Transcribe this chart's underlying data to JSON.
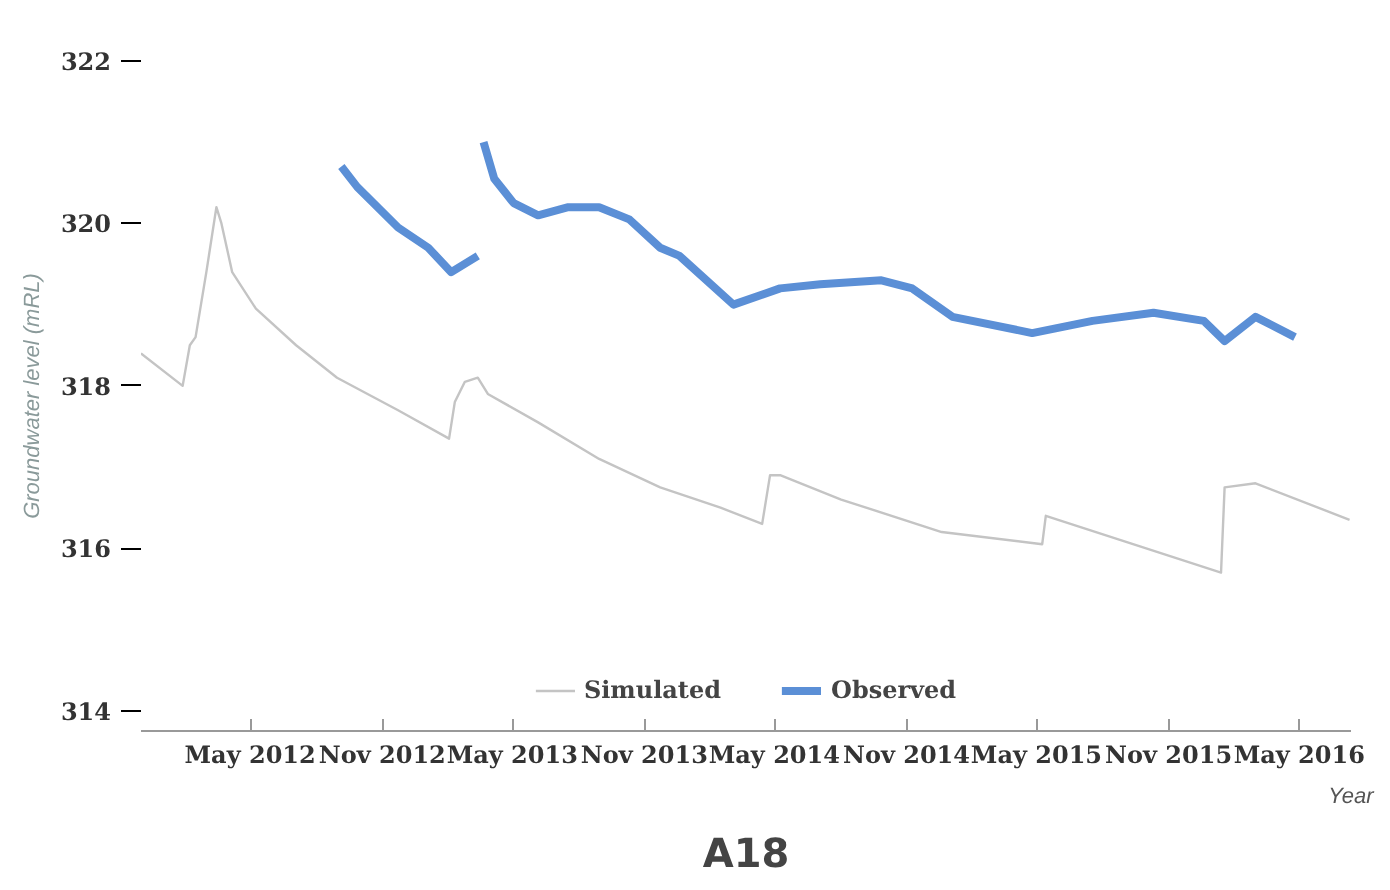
{
  "chart_data": {
    "type": "line",
    "ylabel": "Groundwater level (mRL)",
    "xlabel": "Year",
    "annotations": [
      "A18"
    ],
    "xlim": [
      "2011-12-01",
      "2016-07-12"
    ],
    "ylim": [
      313.75,
      322
    ],
    "yticks": [
      314,
      316,
      318,
      320,
      322
    ],
    "xticks": [
      {
        "value": "2012-05-01",
        "label": "May 2012"
      },
      {
        "value": "2012-11-01",
        "label": "Nov 2012"
      },
      {
        "value": "2013-05-01",
        "label": "May 2013"
      },
      {
        "value": "2013-11-01",
        "label": "Nov 2013"
      },
      {
        "value": "2014-05-01",
        "label": "May 2014"
      },
      {
        "value": "2014-11-01",
        "label": "Nov 2014"
      },
      {
        "value": "2015-05-01",
        "label": "May 2015"
      },
      {
        "value": "2015-11-01",
        "label": "Nov 2015"
      },
      {
        "value": "2016-05-01",
        "label": "May 2016"
      }
    ],
    "grid": false,
    "legend": "bottom",
    "marker": "none",
    "line_style": "solid",
    "series": [
      {
        "name": "Simulated",
        "color": "#c4c4c4",
        "x": [
          "2011-12-01",
          "2012-01-28",
          "2012-02-07",
          "2012-02-15",
          "2012-03-01",
          "2012-03-15",
          "2012-03-22",
          "2012-04-06",
          "2012-05-09",
          "2012-07-04",
          "2012-08-30",
          "2012-11-23",
          "2013-02-02",
          "2013-02-10",
          "2013-02-24",
          "2013-03-14",
          "2013-03-28",
          "2013-06-06",
          "2013-08-30",
          "2013-11-23",
          "2014-02-15",
          "2014-04-14",
          "2014-04-25",
          "2014-05-09",
          "2014-08-02",
          "2014-12-20",
          "2015-05-09",
          "2015-05-14",
          "2016-01-13",
          "2016-01-18",
          "2016-03-01",
          "2016-07-10"
        ],
        "values": [
          318.4,
          318.0,
          318.5,
          318.6,
          319.4,
          320.2,
          320.0,
          319.4,
          318.95,
          318.5,
          318.1,
          317.7,
          317.35,
          317.8,
          318.05,
          318.1,
          317.9,
          317.55,
          317.1,
          316.75,
          316.5,
          316.3,
          316.9,
          316.9,
          316.6,
          316.2,
          316.05,
          316.4,
          315.7,
          316.75,
          316.8,
          316.35
        ]
      },
      {
        "name": "Observed",
        "color": "#5b8fd6",
        "x": [
          "2012-09-05",
          "2012-09-27",
          "2012-11-23",
          "2013-01-04",
          "2013-02-05",
          "2013-03-14",
          "2013-03-18",
          "2013-03-22",
          "2013-04-06",
          "2013-05-03",
          "2013-06-06",
          "2013-07-18",
          "2013-08-30",
          "2013-10-11",
          "2013-11-23",
          "2013-12-20",
          "2014-03-05",
          "2014-05-09",
          "2014-07-04",
          "2014-09-27",
          "2014-11-09",
          "2015-01-04",
          "2015-04-25",
          "2015-07-18",
          "2015-10-11",
          "2015-12-20",
          "2016-01-18",
          "2016-03-01",
          "2016-04-25"
        ],
        "values": [
          320.7,
          320.45,
          319.95,
          319.7,
          319.4,
          319.6,
          null,
          321.0,
          320.55,
          320.25,
          320.1,
          320.2,
          320.2,
          320.05,
          319.7,
          319.6,
          319.0,
          319.2,
          319.25,
          319.3,
          319.2,
          318.85,
          318.65,
          318.8,
          318.9,
          318.8,
          318.55,
          318.85,
          318.6
        ]
      }
    ]
  }
}
